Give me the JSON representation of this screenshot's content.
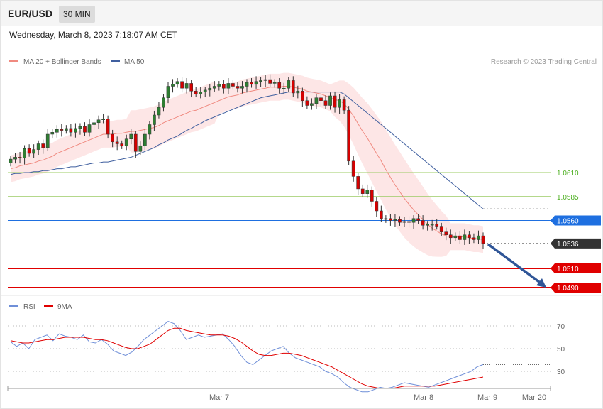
{
  "header": {
    "symbol": "EUR/USD",
    "timeframe": "30 MIN"
  },
  "timestamp": "Wednesday, March 8, 2023 7:18:07 AM CET",
  "legend": {
    "ma20": "MA 20 + Bollinger Bands",
    "ma50": "MA 50",
    "rsi": "RSI",
    "ma9": "9MA"
  },
  "credit": "Research © 2023 Trading Central",
  "colors": {
    "ma20": "#f08a80",
    "ma50": "#3f5f9f",
    "band": "#fde2e2",
    "up": "#2e7d32",
    "down": "#d50000",
    "resistance": "#9ccc65",
    "pivot": "#1e6fe0",
    "support": "#e00000",
    "rsi": "#6f8fd8",
    "rsi_ma": "#e00000"
  },
  "chart_data": [
    {
      "type": "candlestick",
      "ylim": [
        1.0476,
        1.0715
      ],
      "x_ticks": [
        "Mar 7",
        "Mar 8",
        "Mar 9",
        "Mar 20"
      ],
      "levels": [
        {
          "value": "1.0610",
          "kind": "resistance"
        },
        {
          "value": "1.0585",
          "kind": "resistance"
        },
        {
          "value": "1.0560",
          "kind": "pivot"
        },
        {
          "value": "1.0536",
          "kind": "last"
        },
        {
          "value": "1.0510",
          "kind": "support"
        },
        {
          "value": "1.0490",
          "kind": "support"
        }
      ],
      "forecast": {
        "from": 1.0536,
        "to": 1.049,
        "direction": "down"
      },
      "candles_close": [
        1.0624,
        1.0626,
        1.0625,
        1.0635,
        1.063,
        1.0634,
        1.064,
        1.0636,
        1.065,
        1.0652,
        1.0655,
        1.0654,
        1.0656,
        1.0652,
        1.0656,
        1.0658,
        1.0652,
        1.066,
        1.0662,
        1.0665,
        1.0666,
        1.065,
        1.0642,
        1.064,
        1.0638,
        1.0645,
        1.065,
        1.0632,
        1.0638,
        1.065,
        1.066,
        1.067,
        1.0678,
        1.0688,
        1.07,
        1.0702,
        1.0705,
        1.0698,
        1.0703,
        1.0695,
        1.0692,
        1.0694,
        1.0696,
        1.0698,
        1.07,
        1.0702,
        1.0698,
        1.0703,
        1.07,
        1.0698,
        1.07,
        1.0704,
        1.0702,
        1.0705,
        1.0706,
        1.0707,
        1.0703,
        1.0704,
        1.0698,
        1.0698,
        1.0706,
        1.0693,
        1.0695,
        1.0685,
        1.068,
        1.0682,
        1.0688,
        1.0685,
        1.068,
        1.069,
        1.0678,
        1.0686,
        1.0675,
        1.0622,
        1.0606,
        1.0593,
        1.0588,
        1.0592,
        1.058,
        1.057,
        1.0562,
        1.0562,
        1.056,
        1.0561,
        1.0558,
        1.0559,
        1.0558,
        1.0562,
        1.056,
        1.0555,
        1.0556,
        1.0556,
        1.0554,
        1.0548,
        1.0545,
        1.0542,
        1.0544,
        1.054,
        1.0545,
        1.0542,
        1.054,
        1.0544,
        1.0536
      ],
      "ma20": [
        1.0614,
        1.0615,
        1.0617,
        1.0618,
        1.0619,
        1.062,
        1.0622,
        1.0623,
        1.0625,
        1.0627,
        1.063,
        1.0632,
        1.0634,
        1.0636,
        1.0638,
        1.064,
        1.0642,
        1.0644,
        1.0646,
        1.0648,
        1.065,
        1.065,
        1.065,
        1.0651,
        1.0651,
        1.0652,
        1.0653,
        1.0653,
        1.0654,
        1.0655,
        1.0656,
        1.0657,
        1.0659,
        1.0662,
        1.0664,
        1.0666,
        1.0668,
        1.067,
        1.0672,
        1.0674,
        1.0675,
        1.0677,
        1.0679,
        1.0681,
        1.0683,
        1.0685,
        1.0687,
        1.0689,
        1.069,
        1.0691,
        1.0693,
        1.0694,
        1.0695,
        1.0696,
        1.0697,
        1.0698,
        1.0699,
        1.0699,
        1.0699,
        1.07,
        1.07,
        1.0699,
        1.0698,
        1.0697,
        1.0695,
        1.0694,
        1.0693,
        1.0692,
        1.069,
        1.0688,
        1.0686,
        1.0685,
        1.0682,
        1.0676,
        1.0669,
        1.0661,
        1.0653,
        1.0646,
        1.0638,
        1.063,
        1.0622,
        1.0613,
        1.0605,
        1.0597,
        1.059,
        1.0583,
        1.0577,
        1.0571,
        1.0566,
        1.0561,
        1.0556,
        1.0552,
        1.0549,
        1.0546,
        1.0544,
        1.0543,
        1.0543,
        1.0543,
        1.0543,
        1.0542,
        1.0541,
        1.0541,
        1.054
      ],
      "ma50": [
        1.0608,
        1.0609,
        1.0609,
        1.061,
        1.061,
        1.0611,
        1.0611,
        1.0612,
        1.0612,
        1.0613,
        1.0614,
        1.0614,
        1.0615,
        1.0616,
        1.0616,
        1.0617,
        1.0618,
        1.0619,
        1.062,
        1.062,
        1.0621,
        1.0621,
        1.0622,
        1.0623,
        1.0624,
        1.0625,
        1.0626,
        1.0628,
        1.063,
        1.0632,
        1.0634,
        1.0636,
        1.0639,
        1.0641,
        1.0644,
        1.0646,
        1.0648,
        1.0651,
        1.0654,
        1.0656,
        1.0659,
        1.0661,
        1.0664,
        1.0666,
        1.0668,
        1.067,
        1.0672,
        1.0674,
        1.0676,
        1.0678,
        1.068,
        1.0682,
        1.0684,
        1.0686,
        1.0688,
        1.0689,
        1.069,
        1.0691,
        1.0692,
        1.0693,
        1.0694,
        1.0694,
        1.0694,
        1.0694,
        1.0694,
        1.0694,
        1.0694,
        1.0694,
        1.0694,
        1.0694,
        1.0694,
        1.0694,
        1.0692,
        1.0688,
        1.0684,
        1.068,
        1.0676,
        1.0672,
        1.0668,
        1.0664,
        1.066,
        1.0656,
        1.0652,
        1.0648,
        1.0644,
        1.064,
        1.0636,
        1.0632,
        1.0628,
        1.0624,
        1.062,
        1.0616,
        1.0612,
        1.0608,
        1.0604,
        1.06,
        1.0596,
        1.0592,
        1.0588,
        1.0584,
        1.058,
        1.0576,
        1.0572
      ]
    },
    {
      "type": "line",
      "name": "RSI",
      "ylim": [
        0,
        100
      ],
      "y_ticks": [
        "70",
        "50",
        "30"
      ],
      "rsi": [
        56,
        52,
        55,
        50,
        58,
        60,
        62,
        57,
        63,
        61,
        60,
        58,
        62,
        56,
        55,
        58,
        54,
        48,
        46,
        44,
        47,
        52,
        58,
        62,
        66,
        70,
        74,
        72,
        66,
        58,
        60,
        62,
        60,
        61,
        62,
        63,
        58,
        52,
        44,
        38,
        36,
        40,
        44,
        48,
        50,
        52,
        46,
        42,
        40,
        38,
        36,
        34,
        30,
        28,
        25,
        20,
        16,
        14,
        12,
        12,
        14,
        16,
        15,
        16,
        18,
        20,
        19,
        18,
        17,
        16,
        18,
        20,
        22,
        24,
        26,
        28,
        30,
        34,
        36
      ],
      "rsi_ma": [
        57,
        56,
        55,
        55,
        56,
        57,
        58,
        58,
        59,
        60,
        60,
        60,
        60,
        59,
        58,
        58,
        57,
        55,
        53,
        51,
        50,
        50,
        52,
        54,
        58,
        62,
        66,
        68,
        68,
        66,
        65,
        64,
        63,
        62,
        62,
        62,
        61,
        59,
        56,
        52,
        48,
        45,
        44,
        44,
        45,
        46,
        46,
        45,
        44,
        42,
        40,
        38,
        36,
        34,
        31,
        28,
        25,
        22,
        19,
        17,
        16,
        15,
        15,
        15,
        16,
        17,
        17,
        17,
        17,
        17,
        17,
        18,
        19,
        20,
        21,
        22,
        23,
        24,
        25
      ]
    }
  ]
}
